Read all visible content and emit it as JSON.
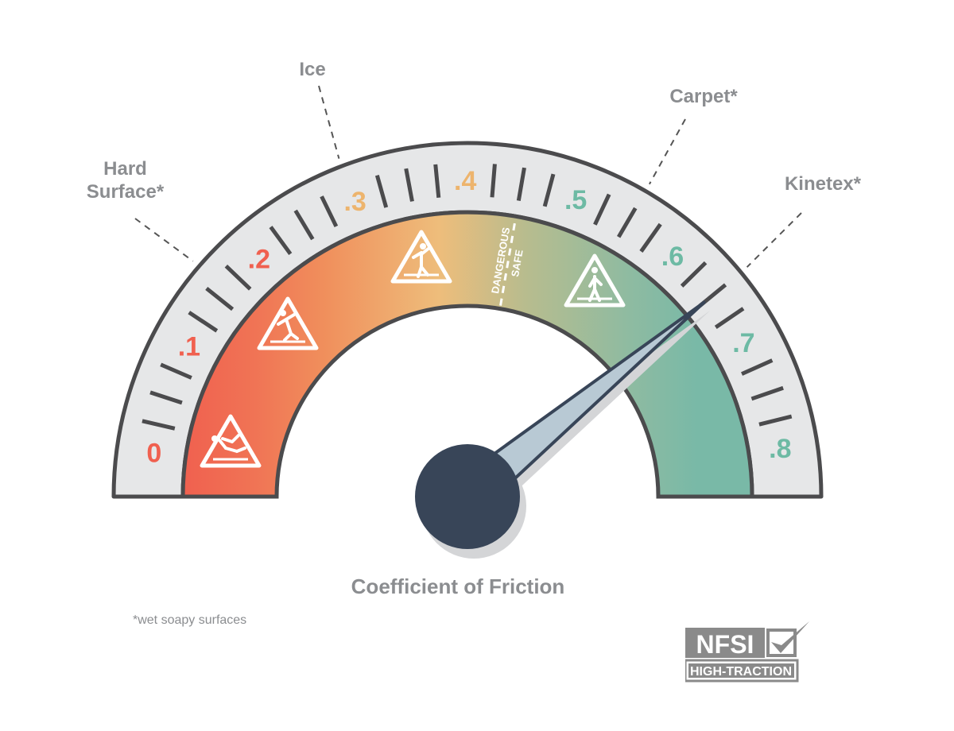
{
  "chart_data": {
    "type": "gauge",
    "xlabel": "Coefficient of Friction",
    "range": [
      0,
      0.8
    ],
    "tick_step": 0.025,
    "tick_labels": [
      "0",
      ".1",
      ".2",
      ".3",
      ".4",
      ".5",
      ".6",
      ".7",
      ".8"
    ],
    "needle_value": 0.65,
    "threshold": {
      "value": 0.45,
      "below_label": "DANGEROUS",
      "above_label": "SAFE"
    },
    "surfaces": [
      {
        "name": "Hard Surface*",
        "lines": [
          "Hard",
          "Surface*"
        ],
        "value": 0.16
      },
      {
        "name": "Ice",
        "lines": [
          "Ice"
        ],
        "value": 0.3
      },
      {
        "name": "Carpet*",
        "lines": [
          "Carpet*"
        ],
        "value": 0.55
      },
      {
        "name": "Kinetex*",
        "lines": [
          "Kinetex*"
        ],
        "value": 0.65
      }
    ],
    "icons": [
      "fallen-person-warning-icon",
      "slipping-person-warning-icon",
      "unbalanced-person-warning-icon",
      "walking-person-warning-icon"
    ]
  },
  "colors": {
    "danger_red": "#f0604f",
    "orange": "#f08f5c",
    "amber": "#eebd7b",
    "safe_teal": "#79b9a7",
    "label_red": "#f0604f",
    "label_amber": "#edb46d",
    "label_teal": "#6dbaa4",
    "outline": "#4b4b4d",
    "band_gray": "#e6e7e8",
    "hub": "#384558",
    "needle": "#b8c9d4"
  },
  "footnote": "*wet soapy surfaces",
  "logo": {
    "top": "NFSI",
    "bottom": "HIGH-TRACTION"
  }
}
